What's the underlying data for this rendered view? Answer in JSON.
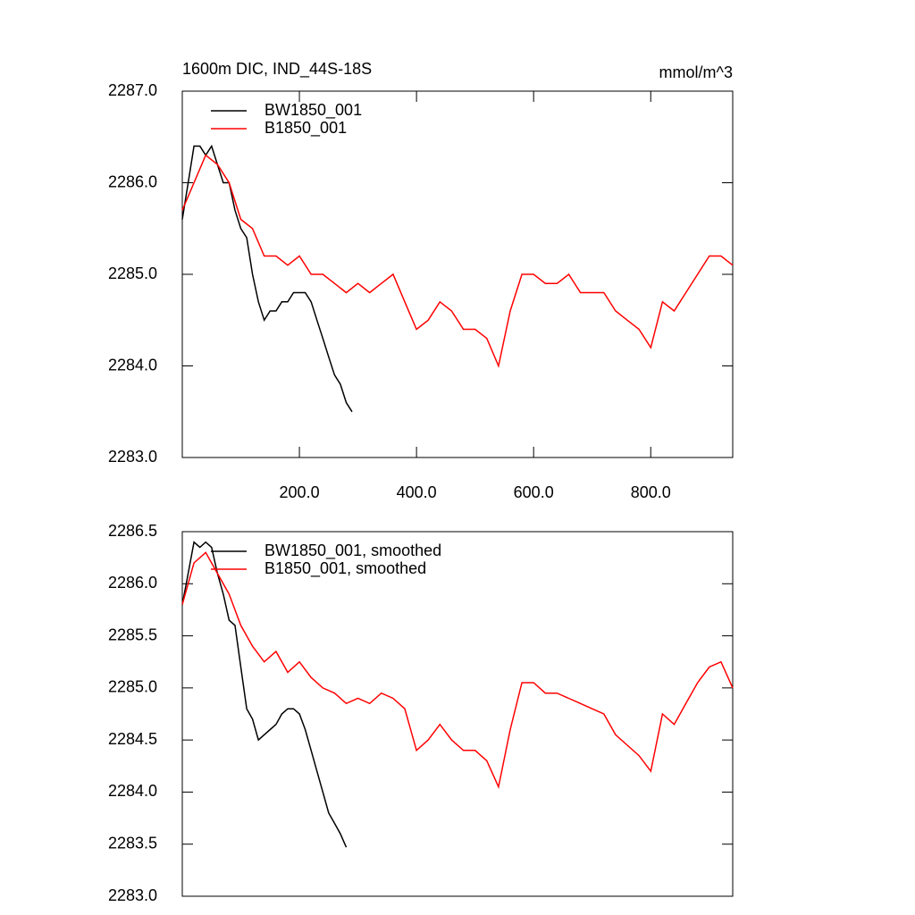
{
  "chart_data": [
    {
      "type": "line",
      "title": "1600m DIC, IND_44S-18S",
      "subtitle": "mmol/m^3",
      "xlim": [
        0,
        940
      ],
      "xticks": [
        {
          "value": 200,
          "label": "200.0"
        },
        {
          "value": 400,
          "label": "400.0"
        },
        {
          "value": 600,
          "label": "600.0"
        },
        {
          "value": 800,
          "label": "800.0"
        }
      ],
      "ylim": [
        2283,
        2287
      ],
      "yticks": [
        {
          "value": 2283,
          "label": "2283.0"
        },
        {
          "value": 2284,
          "label": "2284.0"
        },
        {
          "value": 2285,
          "label": "2285.0"
        },
        {
          "value": 2286,
          "label": "2286.0"
        },
        {
          "value": 2287,
          "label": "2287.0"
        }
      ],
      "legend": "upper-left",
      "series": [
        {
          "name": "BW1850_001",
          "color": "#000000",
          "x": [
            0,
            10,
            20,
            30,
            40,
            50,
            60,
            70,
            80,
            90,
            100,
            110,
            120,
            130,
            140,
            150,
            160,
            170,
            180,
            190,
            200,
            210,
            220,
            230,
            240,
            250,
            260,
            270,
            280,
            290
          ],
          "values": [
            2285.6,
            2286.0,
            2286.4,
            2286.4,
            2286.3,
            2286.4,
            2286.2,
            2286.0,
            2286.0,
            2285.7,
            2285.5,
            2285.4,
            2285.0,
            2284.7,
            2284.5,
            2284.6,
            2284.6,
            2284.7,
            2284.7,
            2284.8,
            2284.8,
            2284.8,
            2284.7,
            2284.5,
            2284.3,
            2284.1,
            2283.9,
            2283.8,
            2283.6,
            2283.5
          ]
        },
        {
          "name": "B1850_001",
          "color": "#ff0000",
          "x": [
            0,
            20,
            40,
            60,
            80,
            100,
            120,
            140,
            160,
            180,
            200,
            220,
            240,
            260,
            280,
            300,
            320,
            340,
            360,
            380,
            400,
            420,
            440,
            460,
            480,
            500,
            520,
            540,
            560,
            580,
            600,
            620,
            640,
            660,
            680,
            700,
            720,
            740,
            760,
            780,
            800,
            820,
            840,
            860,
            880,
            900,
            920,
            940
          ],
          "values": [
            2285.7,
            2286.0,
            2286.3,
            2286.2,
            2286.0,
            2285.6,
            2285.5,
            2285.2,
            2285.2,
            2285.1,
            2285.2,
            2285.0,
            2285.0,
            2284.9,
            2284.8,
            2284.9,
            2284.8,
            2284.9,
            2285.0,
            2284.7,
            2284.4,
            2284.5,
            2284.7,
            2284.6,
            2284.4,
            2284.4,
            2284.3,
            2284.0,
            2284.6,
            2285.0,
            2285.0,
            2284.9,
            2284.9,
            2285.0,
            2284.8,
            2284.8,
            2284.8,
            2284.6,
            2284.5,
            2284.4,
            2284.2,
            2284.7,
            2284.6,
            2284.8,
            2285.0,
            2285.2,
            2285.2,
            2285.1
          ]
        }
      ]
    },
    {
      "type": "line",
      "xlim": [
        0,
        940
      ],
      "ylim": [
        2283,
        2286.5
      ],
      "yticks": [
        {
          "value": 2283,
          "label": "2283.0"
        },
        {
          "value": 2283.5,
          "label": "2283.5"
        },
        {
          "value": 2284,
          "label": "2284.0"
        },
        {
          "value": 2284.5,
          "label": "2284.5"
        },
        {
          "value": 2285,
          "label": "2285.0"
        },
        {
          "value": 2285.5,
          "label": "2285.5"
        },
        {
          "value": 2286,
          "label": "2286.0"
        },
        {
          "value": 2286.5,
          "label": "2286.5"
        }
      ],
      "legend": "upper-left",
      "series": [
        {
          "name": "BW1850_001, smoothed",
          "color": "#000000",
          "x": [
            0,
            10,
            20,
            30,
            40,
            50,
            60,
            70,
            80,
            90,
            100,
            110,
            120,
            130,
            140,
            150,
            160,
            170,
            180,
            190,
            200,
            210,
            220,
            230,
            240,
            250,
            260,
            270,
            280
          ],
          "values": [
            2285.8,
            2286.1,
            2286.4,
            2286.35,
            2286.4,
            2286.35,
            2286.1,
            2285.9,
            2285.65,
            2285.6,
            2285.2,
            2284.8,
            2284.7,
            2284.5,
            2284.55,
            2284.6,
            2284.65,
            2284.75,
            2284.8,
            2284.8,
            2284.75,
            2284.6,
            2284.4,
            2284.2,
            2284.0,
            2283.8,
            2283.7,
            2283.6,
            2283.47
          ]
        },
        {
          "name": "B1850_001, smoothed",
          "color": "#ff0000",
          "x": [
            0,
            20,
            40,
            60,
            80,
            100,
            120,
            140,
            160,
            180,
            200,
            220,
            240,
            260,
            280,
            300,
            320,
            340,
            360,
            380,
            400,
            420,
            440,
            460,
            480,
            500,
            520,
            540,
            560,
            580,
            600,
            620,
            640,
            660,
            680,
            700,
            720,
            740,
            760,
            780,
            800,
            820,
            840,
            860,
            880,
            900,
            920,
            940
          ],
          "values": [
            2285.8,
            2286.2,
            2286.3,
            2286.1,
            2285.9,
            2285.6,
            2285.4,
            2285.25,
            2285.35,
            2285.15,
            2285.25,
            2285.1,
            2285.0,
            2284.95,
            2284.85,
            2284.9,
            2284.85,
            2284.95,
            2284.9,
            2284.8,
            2284.4,
            2284.5,
            2284.65,
            2284.5,
            2284.4,
            2284.4,
            2284.3,
            2284.05,
            2284.6,
            2285.05,
            2285.05,
            2284.95,
            2284.95,
            2284.9,
            2284.85,
            2284.8,
            2284.75,
            2284.55,
            2284.45,
            2284.35,
            2284.2,
            2284.75,
            2284.65,
            2284.85,
            2285.05,
            2285.2,
            2285.25,
            2285.0
          ]
        }
      ]
    }
  ]
}
